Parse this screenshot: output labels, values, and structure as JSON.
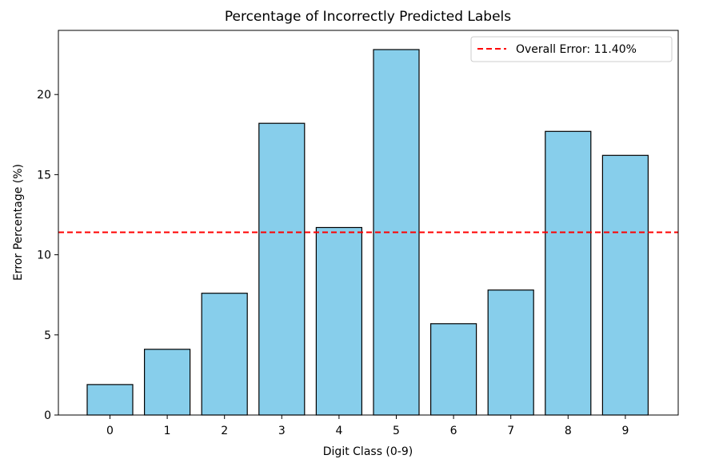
{
  "chart_data": {
    "type": "bar",
    "title": "Percentage of Incorrectly Predicted Labels",
    "xlabel": "Digit Class (0-9)",
    "ylabel": "Error Percentage (%)",
    "categories": [
      "0",
      "1",
      "2",
      "3",
      "4",
      "5",
      "6",
      "7",
      "8",
      "9"
    ],
    "values": [
      1.9,
      4.1,
      7.6,
      18.2,
      11.7,
      22.8,
      5.7,
      7.8,
      17.7,
      16.2
    ],
    "ylim": [
      0,
      24
    ],
    "yticks": [
      "0",
      "5",
      "10",
      "15",
      "20"
    ],
    "reference_line": {
      "value": 11.4,
      "label": "Overall Error: 11.40%",
      "color": "#ff0000",
      "style": "dashed"
    },
    "bar_color": "#87ceeb",
    "bar_edge_color": "#000000",
    "grid": false,
    "legend_position": "top-right"
  }
}
